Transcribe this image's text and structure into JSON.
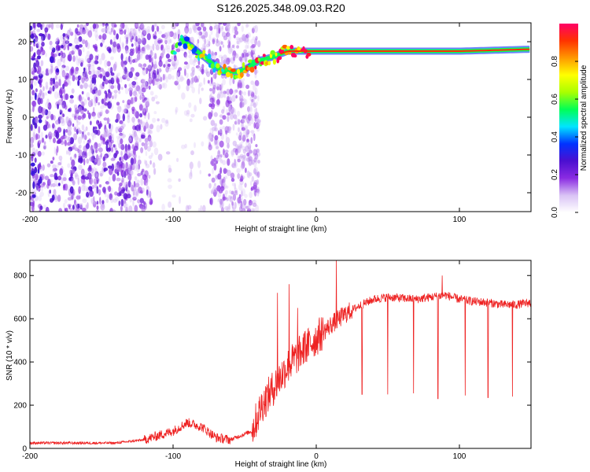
{
  "title": "S126.2025.348.09.03.R20",
  "chart_data": [
    {
      "type": "heatmap",
      "xlabel": "Height of straight line (km)",
      "ylabel": "Frequency (Hz)",
      "xlim": [
        -200,
        150
      ],
      "ylim": [
        -25,
        25
      ],
      "xticks": [
        -200,
        -100,
        0,
        100
      ],
      "yticks": [
        20,
        10,
        0,
        -10,
        -20
      ],
      "colorbar": {
        "label": "Normalized spectral amplitude",
        "range": [
          0.0,
          1.0
        ],
        "ticks": [
          "0.0",
          "0.2",
          "0.4",
          "0.6",
          "0.8"
        ],
        "tick_values": [
          0.0,
          0.2,
          0.4,
          0.6,
          0.8
        ],
        "colors": [
          "#ffffff",
          "#d9c2f5",
          "#8a2be2",
          "#4b0fd0",
          "#0033ff",
          "#00e5ff",
          "#00ff55",
          "#aaff00",
          "#ffff00",
          "#ff9900",
          "#ff3300",
          "#ff0066"
        ]
      },
      "features": {
        "carrier_line_points": [
          [
            -95,
            21
          ],
          [
            -85,
            18
          ],
          [
            -75,
            15
          ],
          [
            -65,
            12
          ],
          [
            -55,
            12
          ],
          [
            -48,
            13
          ],
          [
            -40,
            15
          ],
          [
            -30,
            16
          ],
          [
            -20,
            17.5
          ],
          [
            -10,
            17.5
          ],
          [
            0,
            17.5
          ],
          [
            50,
            17.5
          ],
          [
            100,
            17.5
          ],
          [
            150,
            18
          ]
        ],
        "noise_extent_x": [
          -200,
          -40
        ],
        "blank_region_x": [
          -115,
          -75
        ]
      }
    },
    {
      "type": "line",
      "xlabel": "Height of straight line (km)",
      "ylabel": "SNR (10 * v/v)",
      "xlim": [
        -200,
        150
      ],
      "ylim": [
        0,
        870
      ],
      "xticks": [
        -200,
        -100,
        0,
        100
      ],
      "yticks": [
        0,
        200,
        400,
        600,
        800
      ],
      "color": "#ee2222",
      "trend": [
        [
          -200,
          25
        ],
        [
          -170,
          25
        ],
        [
          -140,
          25
        ],
        [
          -120,
          40
        ],
        [
          -100,
          80
        ],
        [
          -90,
          120
        ],
        [
          -80,
          100
        ],
        [
          -70,
          50
        ],
        [
          -60,
          40
        ],
        [
          -45,
          80
        ],
        [
          -38,
          200
        ],
        [
          -30,
          280
        ],
        [
          -20,
          380
        ],
        [
          -10,
          450
        ],
        [
          0,
          510
        ],
        [
          10,
          570
        ],
        [
          20,
          620
        ],
        [
          30,
          660
        ],
        [
          40,
          690
        ],
        [
          50,
          700
        ],
        [
          60,
          695
        ],
        [
          70,
          690
        ],
        [
          80,
          700
        ],
        [
          90,
          710
        ],
        [
          100,
          690
        ],
        [
          110,
          680
        ],
        [
          120,
          675
        ],
        [
          130,
          665
        ],
        [
          140,
          665
        ],
        [
          150,
          675
        ]
      ],
      "spikes_up": [
        [
          -27,
          720
        ],
        [
          -19,
          760
        ],
        [
          -13,
          650
        ],
        [
          -8,
          540
        ],
        [
          14,
          870
        ],
        [
          88,
          800
        ]
      ],
      "dips": [
        [
          32,
          250
        ],
        [
          50,
          250
        ],
        [
          68,
          255
        ],
        [
          85,
          230
        ],
        [
          104,
          245
        ],
        [
          120,
          235
        ],
        [
          137,
          240
        ]
      ]
    }
  ]
}
